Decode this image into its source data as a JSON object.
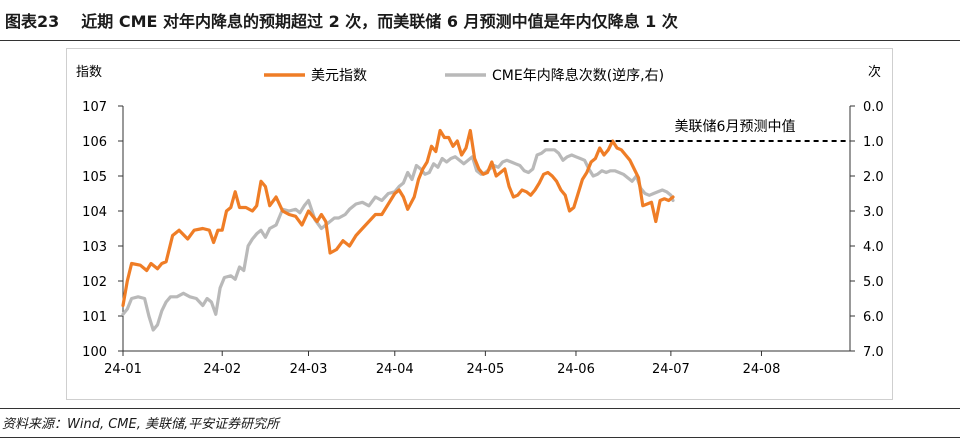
{
  "header": {
    "figure_label": "图表23",
    "title": "近期 CME 对年内降息的预期超过 2 次，而美联储 6 月预测中值是年内仅降息 1 次"
  },
  "footer": {
    "source": "资料来源：Wind, CME, 美联储,平安证券研究所"
  },
  "chart_data": {
    "type": "line",
    "left_axis": {
      "label": "指数",
      "ylim": [
        100,
        107
      ],
      "ticks": [
        "100",
        "101",
        "102",
        "103",
        "104",
        "105",
        "106",
        "107"
      ]
    },
    "right_axis": {
      "label": "次",
      "ylim": [
        0,
        7
      ],
      "inverted": true,
      "ticks": [
        "0.0",
        "1.0",
        "2.0",
        "3.0",
        "4.0",
        "5.0",
        "6.0",
        "7.0"
      ]
    },
    "x_ticks": [
      "24-01",
      "24-02",
      "24-03",
      "24-04",
      "24-05",
      "24-06",
      "24-07",
      "24-08"
    ],
    "legend": {
      "placement": "top"
    },
    "colors": {
      "usd": "#ef7d26",
      "cme": "#b9b9b9",
      "ref": "#000000",
      "axis": "#333333"
    },
    "series": [
      {
        "name": "美元指数",
        "axis": "left",
        "values": [
          [
            0,
            101.3
          ],
          [
            2,
            102.0
          ],
          [
            4,
            102.5
          ],
          [
            8,
            102.45
          ],
          [
            11,
            102.3
          ],
          [
            13,
            102.5
          ],
          [
            16,
            102.35
          ],
          [
            18,
            102.5
          ],
          [
            20,
            102.55
          ],
          [
            23,
            103.3
          ],
          [
            26,
            103.45
          ],
          [
            30,
            103.2
          ],
          [
            33,
            103.45
          ],
          [
            37,
            103.5
          ],
          [
            40,
            103.45
          ],
          [
            42,
            103.1
          ],
          [
            44,
            103.45
          ],
          [
            46,
            103.45
          ],
          [
            48,
            104.0
          ],
          [
            50,
            104.1
          ],
          [
            52,
            104.55
          ],
          [
            54,
            104.1
          ],
          [
            57,
            104.1
          ],
          [
            60,
            104.0
          ],
          [
            62,
            104.15
          ],
          [
            64,
            104.85
          ],
          [
            66,
            104.7
          ],
          [
            68,
            104.15
          ],
          [
            71,
            104.4
          ],
          [
            74,
            104.0
          ],
          [
            77,
            103.9
          ],
          [
            80,
            103.85
          ],
          [
            83,
            103.6
          ],
          [
            86,
            104.0
          ],
          [
            88,
            103.85
          ],
          [
            90,
            103.7
          ],
          [
            92,
            103.9
          ],
          [
            94,
            103.7
          ],
          [
            96,
            102.8
          ],
          [
            99,
            102.9
          ],
          [
            102,
            103.15
          ],
          [
            105,
            103.0
          ],
          [
            108,
            103.3
          ],
          [
            111,
            103.5
          ],
          [
            114,
            103.7
          ],
          [
            117,
            103.9
          ],
          [
            120,
            103.9
          ],
          [
            123,
            104.2
          ],
          [
            126,
            104.5
          ],
          [
            128,
            104.6
          ],
          [
            130,
            104.4
          ],
          [
            132,
            104.05
          ],
          [
            135,
            104.4
          ],
          [
            137,
            104.9
          ],
          [
            139,
            105.2
          ],
          [
            141,
            105.4
          ],
          [
            143,
            105.85
          ],
          [
            145,
            105.7
          ],
          [
            147,
            106.3
          ],
          [
            149,
            106.1
          ],
          [
            151,
            106.1
          ],
          [
            153,
            105.85
          ],
          [
            155,
            106.0
          ],
          [
            157,
            105.6
          ],
          [
            159,
            105.8
          ],
          [
            161,
            106.3
          ],
          [
            163,
            105.5
          ],
          [
            165,
            105.2
          ],
          [
            167,
            105.05
          ],
          [
            169,
            105.1
          ],
          [
            171,
            105.4
          ],
          [
            173,
            105.0
          ],
          [
            175,
            105.1
          ],
          [
            177,
            105.2
          ],
          [
            179,
            104.7
          ],
          [
            181,
            104.4
          ],
          [
            183,
            104.45
          ],
          [
            185,
            104.6
          ],
          [
            187,
            104.55
          ],
          [
            189,
            104.45
          ],
          [
            191,
            104.6
          ],
          [
            193,
            104.8
          ],
          [
            195,
            105.05
          ],
          [
            197,
            105.1
          ],
          [
            199,
            105.0
          ],
          [
            201,
            104.85
          ],
          [
            203,
            104.6
          ],
          [
            205,
            104.45
          ],
          [
            207,
            104.0
          ],
          [
            209,
            104.1
          ],
          [
            211,
            104.5
          ],
          [
            213,
            104.9
          ],
          [
            215,
            105.1
          ],
          [
            217,
            105.4
          ],
          [
            219,
            105.5
          ],
          [
            221,
            105.8
          ],
          [
            223,
            105.6
          ],
          [
            225,
            105.75
          ],
          [
            227,
            106.0
          ],
          [
            229,
            105.8
          ],
          [
            231,
            105.75
          ],
          [
            233,
            105.6
          ],
          [
            235,
            105.45
          ],
          [
            237,
            105.2
          ],
          [
            239,
            104.95
          ],
          [
            241,
            104.15
          ],
          [
            243,
            104.2
          ],
          [
            245,
            104.25
          ],
          [
            247,
            103.7
          ],
          [
            249,
            104.3
          ],
          [
            251,
            104.35
          ],
          [
            253,
            104.3
          ],
          [
            255,
            104.4
          ]
        ]
      },
      {
        "name": "CME年内降息次数(逆序,右)",
        "axis": "right",
        "values": [
          [
            0,
            5.95
          ],
          [
            2,
            5.8
          ],
          [
            4,
            5.5
          ],
          [
            7,
            5.45
          ],
          [
            10,
            5.5
          ],
          [
            12,
            6.0
          ],
          [
            14,
            6.4
          ],
          [
            16,
            6.25
          ],
          [
            18,
            5.85
          ],
          [
            20,
            5.6
          ],
          [
            22,
            5.45
          ],
          [
            25,
            5.45
          ],
          [
            28,
            5.35
          ],
          [
            31,
            5.45
          ],
          [
            34,
            5.5
          ],
          [
            37,
            5.7
          ],
          [
            39,
            5.5
          ],
          [
            41,
            5.6
          ],
          [
            43,
            5.95
          ],
          [
            45,
            5.2
          ],
          [
            47,
            4.9
          ],
          [
            50,
            4.85
          ],
          [
            52,
            4.95
          ],
          [
            54,
            4.6
          ],
          [
            56,
            4.7
          ],
          [
            58,
            4.0
          ],
          [
            60,
            3.8
          ],
          [
            62,
            3.65
          ],
          [
            64,
            3.55
          ],
          [
            66,
            3.75
          ],
          [
            68,
            3.5
          ],
          [
            71,
            3.4
          ],
          [
            74,
            2.95
          ],
          [
            77,
            3.0
          ],
          [
            80,
            2.95
          ],
          [
            82,
            3.05
          ],
          [
            84,
            2.85
          ],
          [
            86,
            2.7
          ],
          [
            89,
            3.25
          ],
          [
            92,
            3.5
          ],
          [
            95,
            3.35
          ],
          [
            98,
            3.2
          ],
          [
            100,
            3.2
          ],
          [
            103,
            3.1
          ],
          [
            105,
            2.95
          ],
          [
            108,
            2.8
          ],
          [
            111,
            2.75
          ],
          [
            114,
            2.85
          ],
          [
            117,
            2.6
          ],
          [
            120,
            2.7
          ],
          [
            123,
            2.5
          ],
          [
            126,
            2.45
          ],
          [
            128,
            2.3
          ],
          [
            130,
            2.2
          ],
          [
            132,
            1.9
          ],
          [
            134,
            2.1
          ],
          [
            136,
            1.7
          ],
          [
            138,
            1.8
          ],
          [
            140,
            1.95
          ],
          [
            142,
            1.9
          ],
          [
            144,
            1.65
          ],
          [
            146,
            1.75
          ],
          [
            148,
            1.5
          ],
          [
            150,
            1.6
          ],
          [
            152,
            1.5
          ],
          [
            154,
            1.45
          ],
          [
            156,
            1.55
          ],
          [
            158,
            1.65
          ],
          [
            160,
            1.55
          ],
          [
            162,
            1.45
          ],
          [
            164,
            1.85
          ],
          [
            166,
            1.95
          ],
          [
            168,
            1.9
          ],
          [
            170,
            1.8
          ],
          [
            172,
            1.7
          ],
          [
            174,
            1.75
          ],
          [
            176,
            1.6
          ],
          [
            178,
            1.55
          ],
          [
            180,
            1.6
          ],
          [
            182,
            1.65
          ],
          [
            184,
            1.7
          ],
          [
            186,
            1.85
          ],
          [
            188,
            1.9
          ],
          [
            190,
            1.8
          ],
          [
            192,
            1.4
          ],
          [
            194,
            1.35
          ],
          [
            196,
            1.25
          ],
          [
            198,
            1.25
          ],
          [
            200,
            1.25
          ],
          [
            202,
            1.35
          ],
          [
            204,
            1.55
          ],
          [
            206,
            1.45
          ],
          [
            208,
            1.4
          ],
          [
            210,
            1.45
          ],
          [
            212,
            1.5
          ],
          [
            214,
            1.55
          ],
          [
            216,
            1.8
          ],
          [
            218,
            2.0
          ],
          [
            220,
            1.95
          ],
          [
            222,
            1.85
          ],
          [
            224,
            1.9
          ],
          [
            226,
            1.85
          ],
          [
            228,
            1.85
          ],
          [
            230,
            1.9
          ],
          [
            232,
            1.95
          ],
          [
            234,
            2.05
          ],
          [
            236,
            2.15
          ],
          [
            238,
            2.0
          ],
          [
            240,
            2.35
          ],
          [
            242,
            2.5
          ],
          [
            244,
            2.55
          ],
          [
            246,
            2.5
          ],
          [
            248,
            2.45
          ],
          [
            250,
            2.4
          ],
          [
            252,
            2.45
          ],
          [
            254,
            2.55
          ],
          [
            255,
            2.7
          ]
        ]
      }
    ],
    "reference_line": {
      "label": "美联储6月预测中值",
      "axis": "right",
      "value": 1.0,
      "x_start": 195,
      "x_end": 279
    }
  }
}
